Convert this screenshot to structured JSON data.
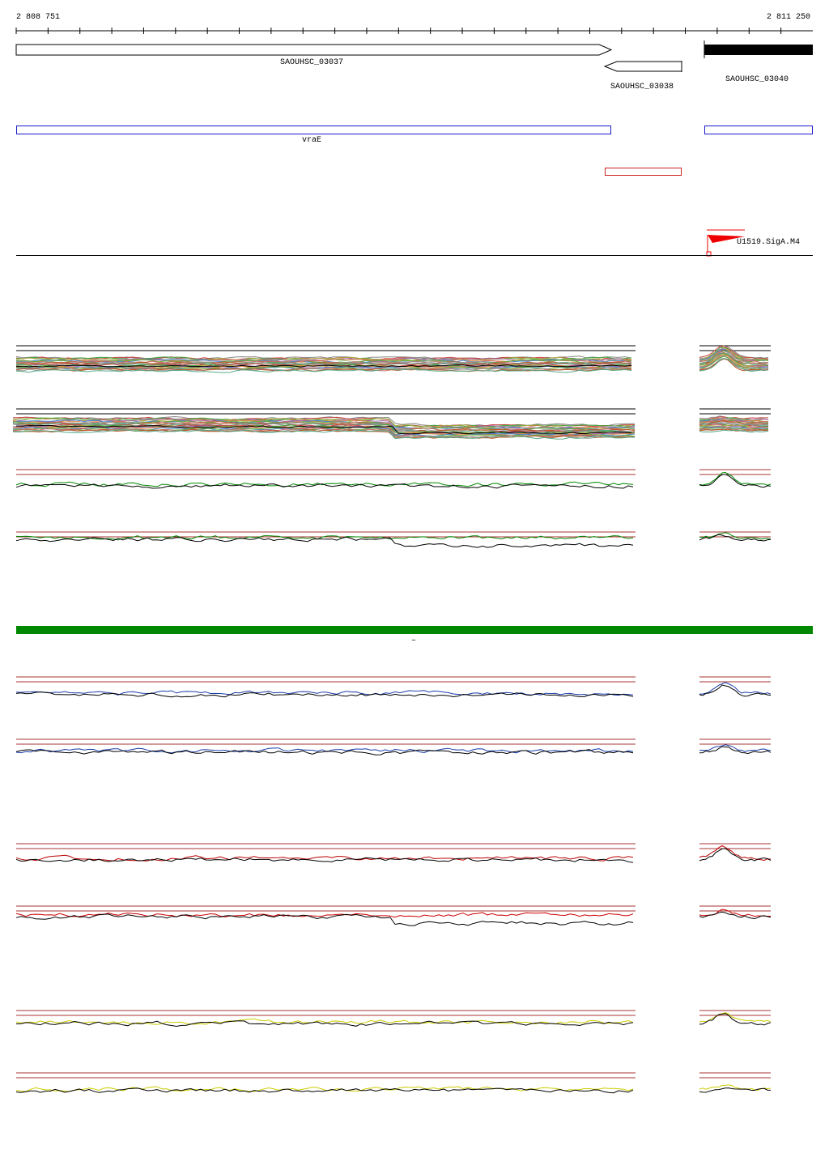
{
  "ruler": {
    "start": "2 808 751",
    "end": "2 811 250"
  },
  "genes": [
    {
      "label": "SAOUHSC_03037"
    },
    {
      "label": "SAOUHSC_03038"
    },
    {
      "label": "SAOUHSC_03040"
    }
  ],
  "operon": {
    "label": "vraE"
  },
  "promoter": {
    "label": "U1519.SigA.M4"
  },
  "strand_marker": "–"
}
